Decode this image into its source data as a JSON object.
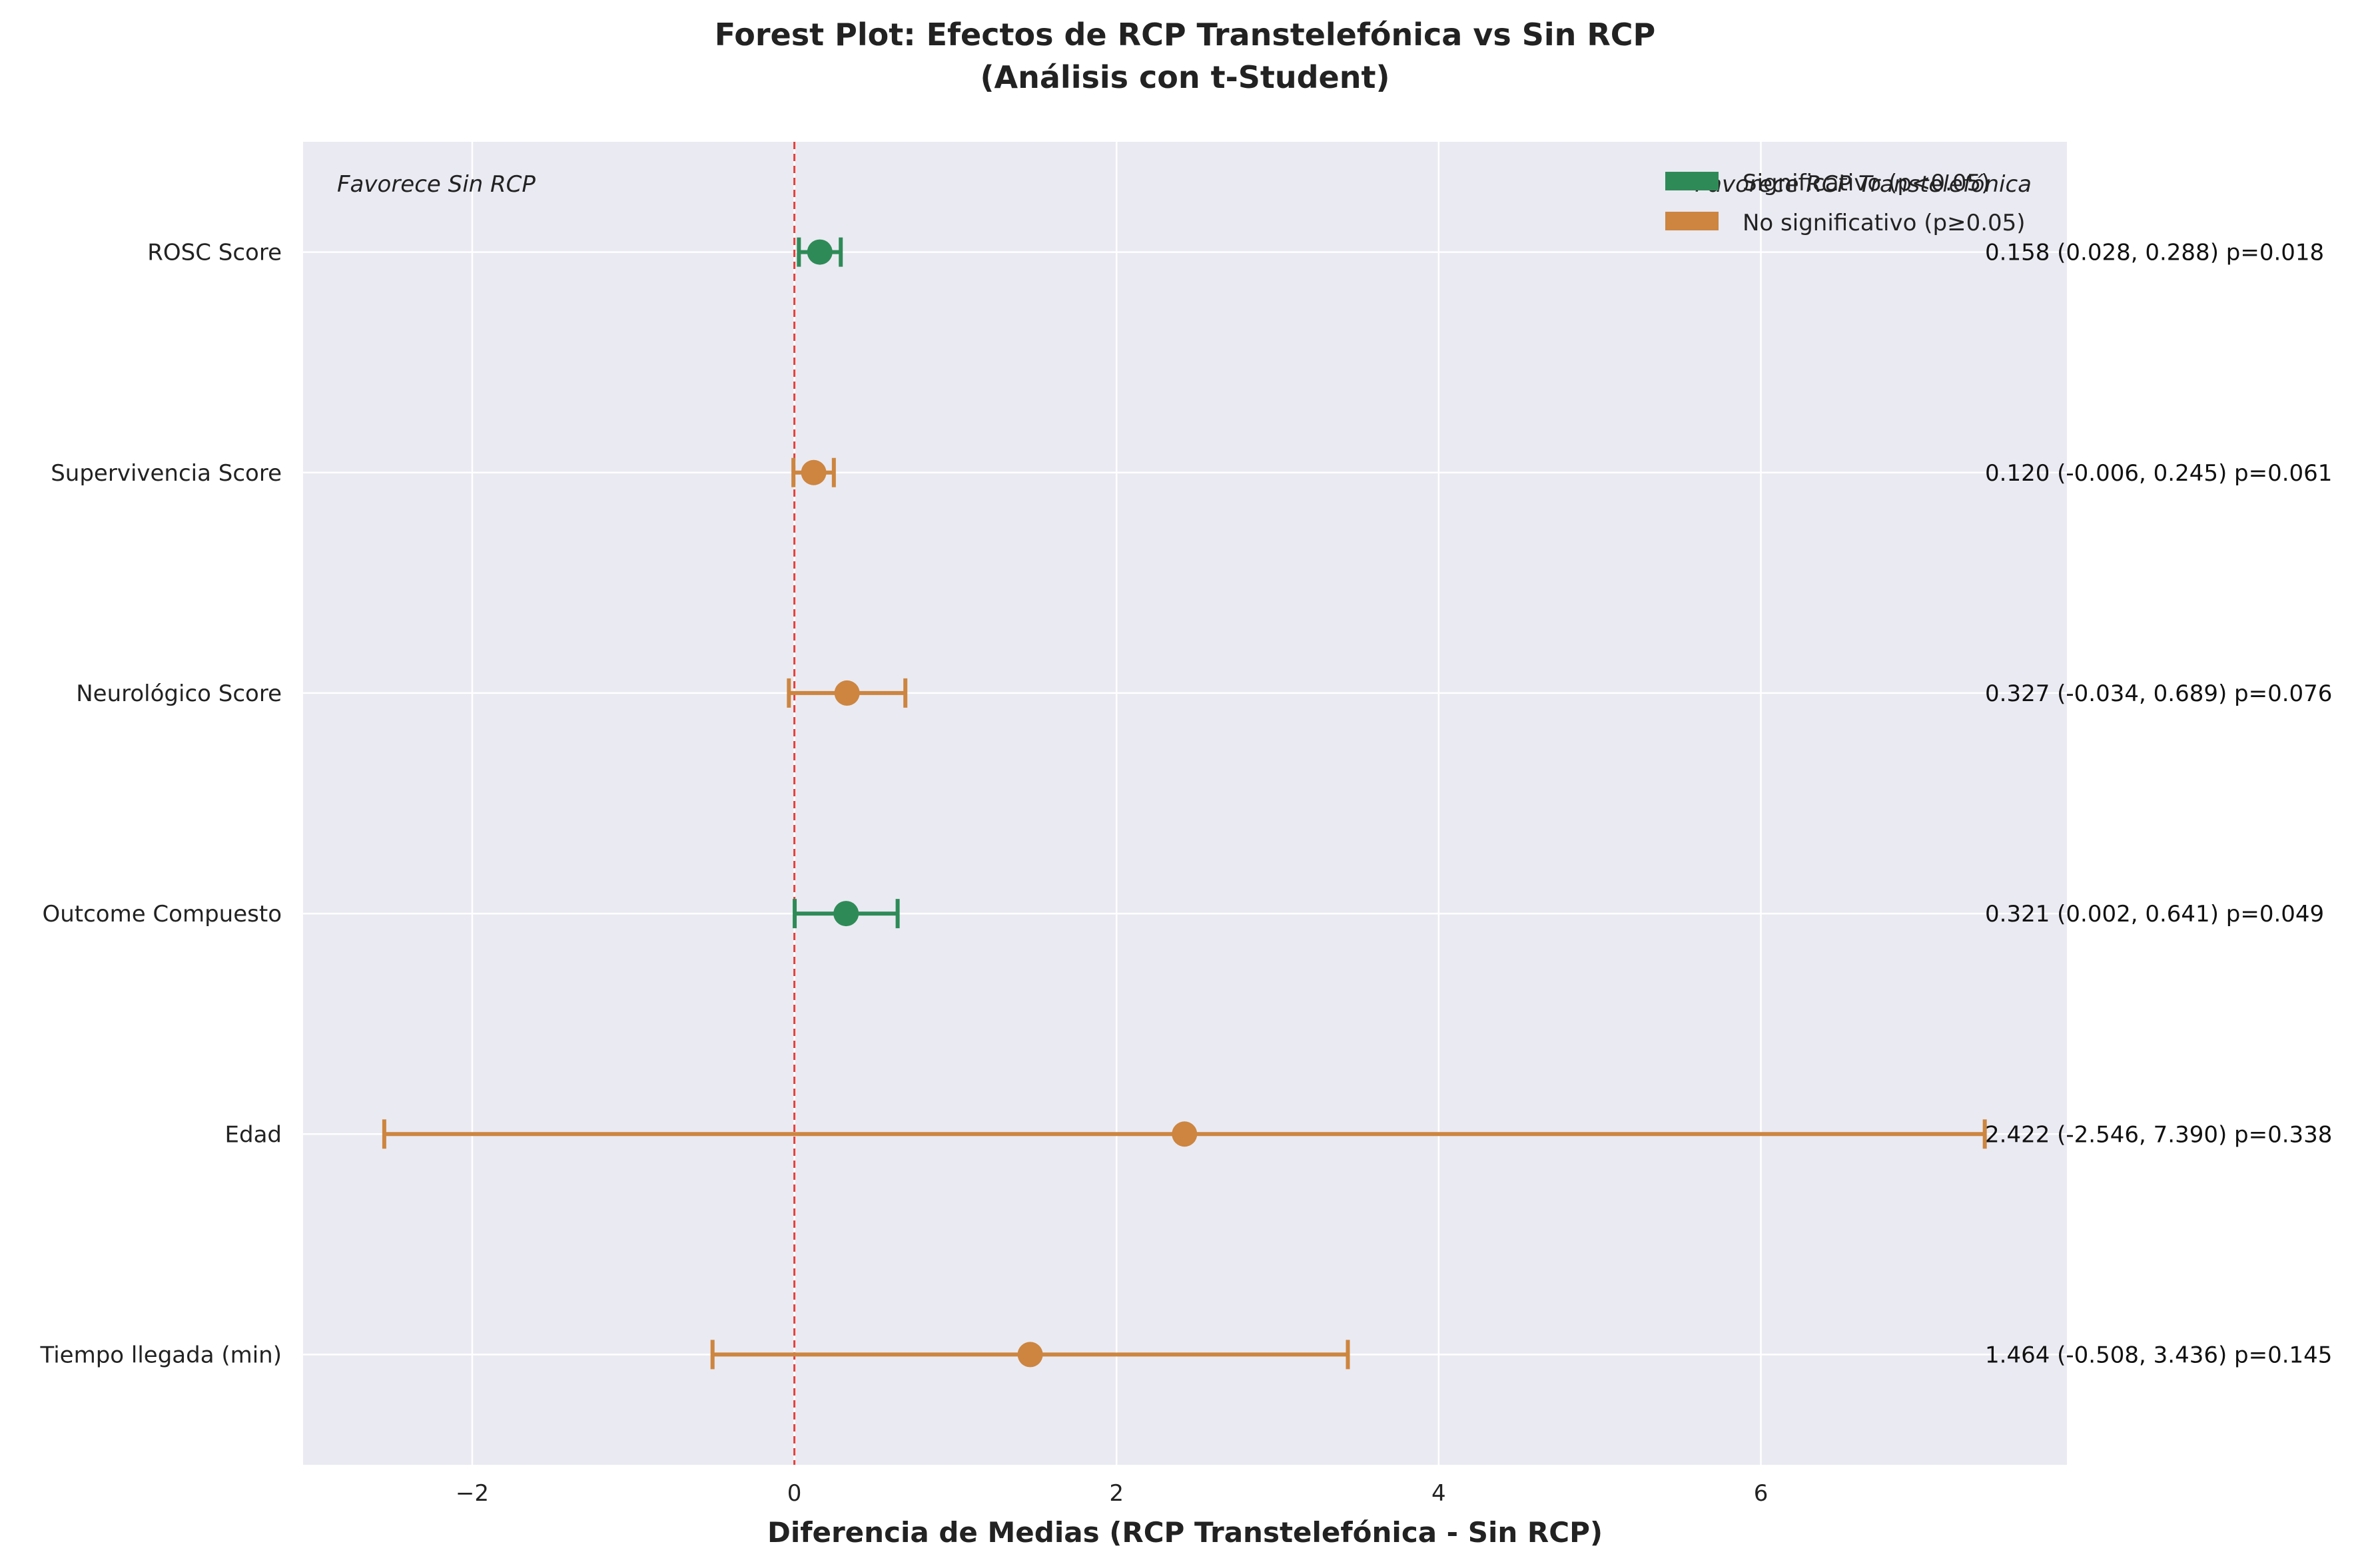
{
  "chart_data": {
    "type": "forest",
    "title": "Forest Plot: Efectos de RCP Transtelefónica vs Sin RCP",
    "subtitle": "(Análisis con t-Student)",
    "xlabel": "Diferencia de Medias (RCP Transtelefónica - Sin RCP)",
    "xlim": [
      -3.05,
      7.9
    ],
    "xticks": [
      -2,
      0,
      2,
      4,
      6
    ],
    "xtick_labels": [
      "−2",
      "0",
      "2",
      "4",
      "6"
    ],
    "reference_line": 0,
    "grid": true,
    "annotations": {
      "favor_left": "Favorece Sin RCP",
      "favor_right": "Favorece RCP Transtelefónica"
    },
    "legend": {
      "placement": "top-right",
      "entries": [
        {
          "label": "Significativo (p<0.05)",
          "color": "#2e8b57"
        },
        {
          "label": "No significativo (p≥0.05)",
          "color": "#cd853f"
        }
      ]
    },
    "rows": [
      {
        "label": "ROSC Score",
        "estimate": 0.158,
        "ci_low": 0.028,
        "ci_high": 0.288,
        "p": 0.018,
        "significant": true,
        "text": "0.158 (0.028, 0.288) p=0.018"
      },
      {
        "label": "Supervivencia Score",
        "estimate": 0.12,
        "ci_low": -0.006,
        "ci_high": 0.245,
        "p": 0.061,
        "significant": false,
        "text": "0.120 (-0.006, 0.245) p=0.061"
      },
      {
        "label": "Neurológico Score",
        "estimate": 0.327,
        "ci_low": -0.034,
        "ci_high": 0.689,
        "p": 0.076,
        "significant": false,
        "text": "0.327 (-0.034, 0.689) p=0.076"
      },
      {
        "label": "Outcome Compuesto",
        "estimate": 0.321,
        "ci_low": 0.002,
        "ci_high": 0.641,
        "p": 0.049,
        "significant": true,
        "text": "0.321 (0.002, 0.641) p=0.049"
      },
      {
        "label": "Edad",
        "estimate": 2.422,
        "ci_low": -2.546,
        "ci_high": 7.39,
        "p": 0.338,
        "significant": false,
        "text": "2.422 (-2.546, 7.390) p=0.338"
      },
      {
        "label": "Tiempo llegada (min)",
        "estimate": 1.464,
        "ci_low": -0.508,
        "ci_high": 3.436,
        "p": 0.145,
        "significant": false,
        "text": "1.464 (-0.508, 3.436) p=0.145"
      }
    ],
    "colors": {
      "significant": "#2e8b57",
      "not_significant": "#cd853f",
      "reference": "#e8403a",
      "plot_background": "#eaeaf2",
      "grid": "#ffffff"
    }
  }
}
